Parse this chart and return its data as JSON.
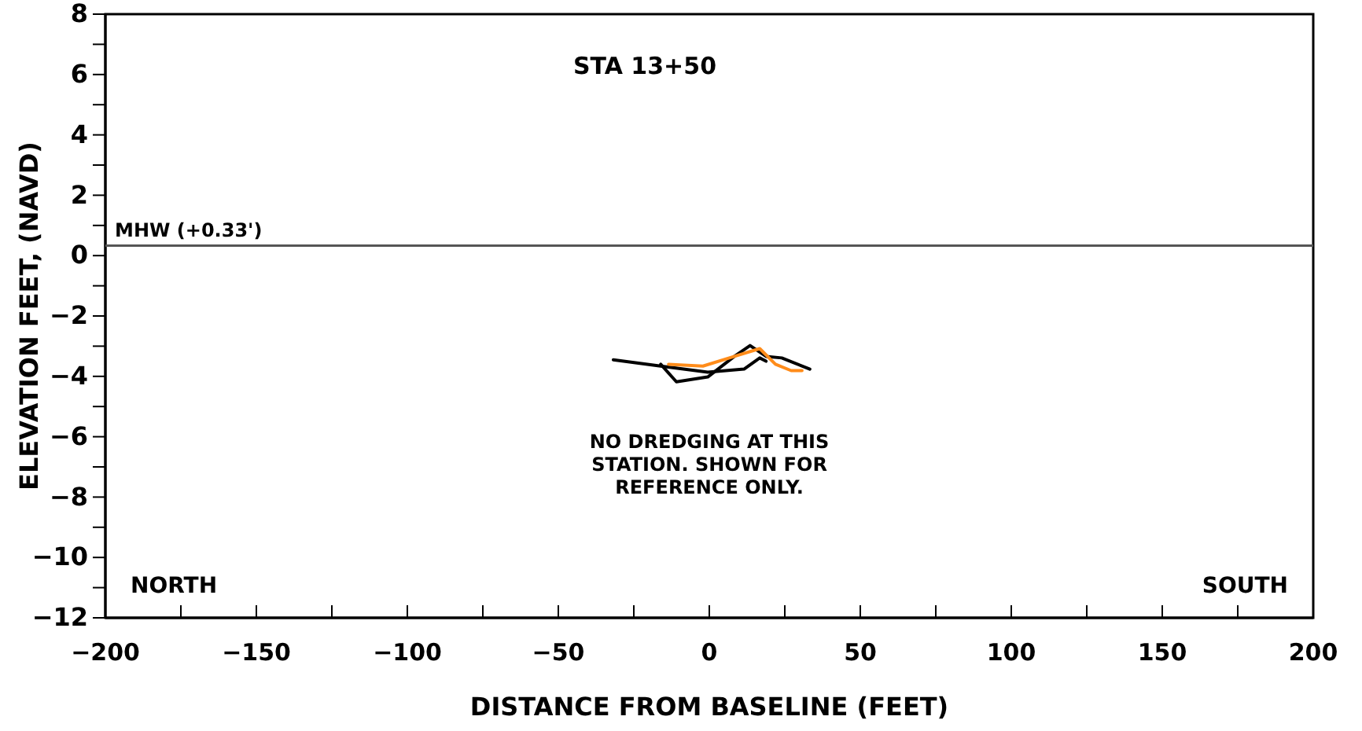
{
  "chart_data": {
    "type": "line",
    "title": "STA 13+50",
    "xlabel": "DISTANCE FROM BASELINE (FEET)",
    "ylabel": "ELEVATION FEET, (NAVD)",
    "xlim": [
      -200,
      200
    ],
    "xticks": [
      -200,
      {
        "value": -175,
        "label": null
      },
      -150,
      {
        "value": -125,
        "label": null
      },
      -100,
      {
        "value": -75,
        "label": null
      },
      -50,
      {
        "value": -25,
        "label": null
      },
      0,
      {
        "value": 25,
        "label": null
      },
      50,
      {
        "value": 75,
        "label": null
      },
      100,
      {
        "value": 125,
        "label": null
      },
      150,
      {
        "value": 175,
        "label": null
      },
      200
    ],
    "ylim": [
      -12,
      8
    ],
    "yticks": [
      -12,
      {
        "value": -11,
        "label": null
      },
      -10,
      {
        "value": -9,
        "label": null
      },
      -8,
      {
        "value": -7,
        "label": null
      },
      -6,
      {
        "value": -5,
        "label": null
      },
      -4,
      {
        "value": -3,
        "label": null
      },
      -2,
      {
        "value": -1,
        "label": null
      },
      0,
      {
        "value": 1,
        "label": null
      },
      2,
      {
        "value": 3,
        "label": null
      },
      4,
      {
        "value": 5,
        "label": null
      },
      6,
      {
        "value": 7,
        "label": null
      },
      8
    ],
    "grid": false,
    "series": [
      {
        "color": "#000000",
        "x": [
          -31.8,
          -16.1,
          -0.5,
          11.5,
          16.7,
          18.8
        ],
        "values": [
          -3.45,
          -3.66,
          -3.86,
          -3.76,
          -3.39,
          -3.5
        ]
      },
      {
        "color": "#000000",
        "x": [
          -16.1,
          -10.9,
          -0.5,
          8.3,
          13.5,
          18.8,
          24,
          33.3
        ],
        "values": [
          -3.6,
          -4.18,
          -4.02,
          -3.34,
          -2.98,
          -3.34,
          -3.39,
          -3.76
        ]
      },
      {
        "color": "#ff8c1a",
        "x": [
          -13.5,
          -2.1,
          8.3,
          16.7,
          21.9,
          27.1,
          30.7
        ],
        "values": [
          -3.6,
          -3.66,
          -3.34,
          -3.08,
          -3.6,
          -3.81,
          -3.81
        ]
      }
    ],
    "ref_lines": [
      {
        "axis": "y",
        "value": 0.33,
        "label": "MHW (+0.33')",
        "color": "#555555"
      }
    ],
    "annotations": [
      "NO DREDGING AT THIS\nSTATION.  SHOWN FOR\nREFERENCE ONLY.",
      "NORTH",
      "SOUTH"
    ]
  }
}
